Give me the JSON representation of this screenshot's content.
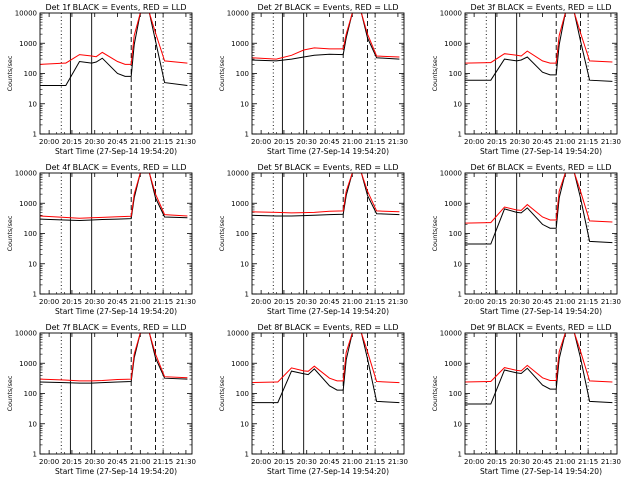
{
  "colors": {
    "events": "#000000",
    "lld": "#ff0000",
    "axes": "#000000",
    "background": "#ffffff"
  },
  "chart_data": [
    {
      "type": "line",
      "title": "Det 1f BLACK = Events, RED = LLD",
      "xlabel": "Start Time (27-Sep-14 19:54:20)",
      "ylabel": "Counts/sec",
      "x_ticks": [
        "20:00",
        "20:15",
        "20:30",
        "20:45",
        "21:00",
        "21:15",
        "21:30"
      ],
      "y_ticks": [
        "1",
        "10",
        "100",
        "1000",
        "10000"
      ],
      "ylim": [
        1,
        10000
      ],
      "yscale": "log",
      "grid": false,
      "series": [
        {
          "key": "events",
          "x": [
            "19:54",
            "20:10",
            "20:11",
            "20:20",
            "20:28",
            "20:31",
            "20:35",
            "20:45",
            "20:50",
            "20:54",
            "20:56",
            "21:00",
            "21:06",
            "21:10",
            "21:16",
            "21:31"
          ],
          "values": [
            40,
            40,
            40,
            250,
            220,
            240,
            320,
            100,
            80,
            80,
            900,
            10000,
            10000,
            1200,
            50,
            40
          ]
        },
        {
          "key": "lld",
          "x": [
            "19:54",
            "20:10",
            "20:11",
            "20:20",
            "20:28",
            "20:31",
            "20:35",
            "20:45",
            "20:50",
            "20:54",
            "20:56",
            "21:00",
            "21:06",
            "21:10",
            "21:16",
            "21:31"
          ],
          "values": [
            200,
            220,
            220,
            420,
            380,
            360,
            500,
            250,
            200,
            200,
            1800,
            10000,
            10000,
            2200,
            260,
            220
          ]
        }
      ]
    },
    {
      "type": "line",
      "title": "Det 2f BLACK = Events, RED = LLD",
      "xlabel": "Start Time (27-Sep-14 19:54:20)",
      "ylabel": "Counts/sec",
      "x_ticks": [
        "20:00",
        "20:15",
        "20:30",
        "20:45",
        "21:00",
        "21:15",
        "21:30"
      ],
      "y_ticks": [
        "1",
        "10",
        "100",
        "1000",
        "10000"
      ],
      "ylim": [
        1,
        10000
      ],
      "yscale": "log",
      "grid": false,
      "series": [
        {
          "key": "events",
          "x": [
            "19:54",
            "20:10",
            "20:20",
            "20:28",
            "20:35",
            "20:45",
            "20:54",
            "20:56",
            "21:00",
            "21:06",
            "21:10",
            "21:16",
            "21:31"
          ],
          "values": [
            280,
            260,
            300,
            350,
            400,
            430,
            420,
            1500,
            10000,
            10000,
            1500,
            330,
            300
          ]
        },
        {
          "key": "lld",
          "x": [
            "19:54",
            "20:10",
            "20:20",
            "20:28",
            "20:35",
            "20:45",
            "20:54",
            "20:56",
            "21:00",
            "21:06",
            "21:10",
            "21:16",
            "21:31"
          ],
          "values": [
            330,
            300,
            400,
            600,
            700,
            650,
            650,
            2000,
            10000,
            10000,
            2000,
            380,
            350
          ]
        }
      ]
    },
    {
      "type": "line",
      "title": "Det 3f BLACK = Events, RED = LLD",
      "xlabel": "Start Time (27-Sep-14 19:54:20)",
      "ylabel": "Counts/sec",
      "x_ticks": [
        "20:00",
        "20:15",
        "20:30",
        "20:45",
        "21:00",
        "21:15",
        "21:30"
      ],
      "y_ticks": [
        "1",
        "10",
        "100",
        "1000",
        "10000"
      ],
      "ylim": [
        1,
        10000
      ],
      "yscale": "log",
      "grid": false,
      "series": [
        {
          "key": "events",
          "x": [
            "19:54",
            "20:10",
            "20:11",
            "20:20",
            "20:28",
            "20:31",
            "20:35",
            "20:45",
            "20:50",
            "20:54",
            "20:56",
            "21:00",
            "21:06",
            "21:10",
            "21:16",
            "21:31"
          ],
          "values": [
            60,
            60,
            60,
            300,
            260,
            280,
            350,
            110,
            90,
            90,
            900,
            10000,
            10000,
            1200,
            60,
            55
          ]
        },
        {
          "key": "lld",
          "x": [
            "19:54",
            "20:10",
            "20:11",
            "20:20",
            "20:28",
            "20:31",
            "20:35",
            "20:45",
            "20:50",
            "20:54",
            "20:56",
            "21:00",
            "21:06",
            "21:10",
            "21:16",
            "21:31"
          ],
          "values": [
            220,
            230,
            230,
            450,
            400,
            380,
            550,
            260,
            220,
            220,
            1800,
            10000,
            10000,
            2200,
            260,
            240
          ]
        }
      ]
    },
    {
      "type": "line",
      "title": "Det 4f BLACK = Events, RED = LLD",
      "xlabel": "Start Time (27-Sep-14 19:54:20)",
      "ylabel": "Counts/sec",
      "x_ticks": [
        "20:00",
        "20:15",
        "20:30",
        "20:45",
        "21:00",
        "21:15",
        "21:30"
      ],
      "y_ticks": [
        "1",
        "10",
        "100",
        "1000",
        "10000"
      ],
      "ylim": [
        1,
        10000
      ],
      "yscale": "log",
      "grid": false,
      "series": [
        {
          "key": "events",
          "x": [
            "19:54",
            "20:10",
            "20:20",
            "20:28",
            "20:35",
            "20:45",
            "20:54",
            "20:56",
            "21:00",
            "21:06",
            "21:10",
            "21:16",
            "21:31"
          ],
          "values": [
            300,
            280,
            270,
            280,
            290,
            300,
            310,
            1500,
            10000,
            10000,
            1500,
            350,
            330
          ]
        },
        {
          "key": "lld",
          "x": [
            "19:54",
            "20:10",
            "20:20",
            "20:28",
            "20:35",
            "20:45",
            "20:54",
            "20:56",
            "21:00",
            "21:06",
            "21:10",
            "21:16",
            "21:31"
          ],
          "values": [
            380,
            340,
            320,
            330,
            340,
            360,
            370,
            2000,
            10000,
            10000,
            2000,
            420,
            380
          ]
        }
      ]
    },
    {
      "type": "line",
      "title": "Det 5f BLACK = Events, RED = LLD",
      "xlabel": "Start Time (27-Sep-14 19:54:20)",
      "ylabel": "Counts/sec",
      "x_ticks": [
        "20:00",
        "20:15",
        "20:30",
        "20:45",
        "21:00",
        "21:15",
        "21:30"
      ],
      "y_ticks": [
        "1",
        "10",
        "100",
        "1000",
        "10000"
      ],
      "ylim": [
        1,
        10000
      ],
      "yscale": "log",
      "grid": false,
      "series": [
        {
          "key": "events",
          "x": [
            "19:54",
            "20:10",
            "20:20",
            "20:28",
            "20:35",
            "20:45",
            "20:54",
            "20:56",
            "21:00",
            "21:06",
            "21:10",
            "21:16",
            "21:31"
          ],
          "values": [
            400,
            380,
            380,
            390,
            400,
            420,
            430,
            1800,
            10000,
            10000,
            1800,
            450,
            420
          ]
        },
        {
          "key": "lld",
          "x": [
            "19:54",
            "20:10",
            "20:20",
            "20:28",
            "20:35",
            "20:45",
            "20:54",
            "20:56",
            "21:00",
            "21:06",
            "21:10",
            "21:16",
            "21:31"
          ],
          "values": [
            520,
            500,
            480,
            490,
            500,
            540,
            560,
            2500,
            10000,
            10000,
            2500,
            560,
            520
          ]
        }
      ]
    },
    {
      "type": "line",
      "title": "Det 6f BLACK = Events, RED = LLD",
      "xlabel": "Start Time (27-Sep-14 19:54:20)",
      "ylabel": "Counts/sec",
      "x_ticks": [
        "20:00",
        "20:15",
        "20:30",
        "20:45",
        "21:00",
        "21:15",
        "21:30"
      ],
      "y_ticks": [
        "1",
        "10",
        "100",
        "1000",
        "10000"
      ],
      "ylim": [
        1,
        10000
      ],
      "yscale": "log",
      "grid": false,
      "series": [
        {
          "key": "events",
          "x": [
            "19:54",
            "20:10",
            "20:11",
            "20:20",
            "20:28",
            "20:31",
            "20:35",
            "20:45",
            "20:50",
            "20:54",
            "20:56",
            "21:00",
            "21:06",
            "21:10",
            "21:16",
            "21:31"
          ],
          "values": [
            45,
            45,
            45,
            650,
            500,
            480,
            700,
            200,
            150,
            150,
            1500,
            10000,
            10000,
            1500,
            55,
            50
          ]
        },
        {
          "key": "lld",
          "x": [
            "19:54",
            "20:10",
            "20:11",
            "20:20",
            "20:28",
            "20:31",
            "20:35",
            "20:45",
            "20:50",
            "20:54",
            "20:56",
            "21:00",
            "21:06",
            "21:10",
            "21:16",
            "21:31"
          ],
          "values": [
            220,
            230,
            230,
            750,
            600,
            580,
            900,
            350,
            280,
            280,
            2500,
            10000,
            10000,
            2500,
            260,
            240
          ]
        }
      ]
    },
    {
      "type": "line",
      "title": "Det 7f BLACK = Events, RED = LLD",
      "xlabel": "Start Time (27-Sep-14 19:54:20)",
      "ylabel": "Counts/sec",
      "x_ticks": [
        "20:00",
        "20:15",
        "20:30",
        "20:45",
        "21:00",
        "21:15",
        "21:30"
      ],
      "y_ticks": [
        "1",
        "10",
        "100",
        "1000",
        "10000"
      ],
      "ylim": [
        1,
        10000
      ],
      "yscale": "log",
      "grid": false,
      "series": [
        {
          "key": "events",
          "x": [
            "19:54",
            "20:10",
            "20:20",
            "20:28",
            "20:35",
            "20:45",
            "20:54",
            "20:56",
            "21:00",
            "21:06",
            "21:10",
            "21:16",
            "21:31"
          ],
          "values": [
            240,
            230,
            220,
            220,
            230,
            240,
            250,
            1500,
            10000,
            10000,
            1500,
            320,
            300
          ]
        },
        {
          "key": "lld",
          "x": [
            "19:54",
            "20:10",
            "20:20",
            "20:28",
            "20:35",
            "20:45",
            "20:54",
            "20:56",
            "21:00",
            "21:06",
            "21:10",
            "21:16",
            "21:31"
          ],
          "values": [
            300,
            280,
            260,
            260,
            270,
            290,
            300,
            2000,
            10000,
            10000,
            2000,
            360,
            330
          ]
        }
      ]
    },
    {
      "type": "line",
      "title": "Det 8f BLACK = Events, RED = LLD",
      "xlabel": "Start Time (27-Sep-14 19:54:20)",
      "ylabel": "Counts/sec",
      "x_ticks": [
        "20:00",
        "20:15",
        "20:30",
        "20:45",
        "21:00",
        "21:15",
        "21:30"
      ],
      "y_ticks": [
        "1",
        "10",
        "100",
        "1000",
        "10000"
      ],
      "ylim": [
        1,
        10000
      ],
      "yscale": "log",
      "grid": false,
      "series": [
        {
          "key": "events",
          "x": [
            "19:54",
            "20:10",
            "20:11",
            "20:20",
            "20:28",
            "20:31",
            "20:35",
            "20:45",
            "20:50",
            "20:54",
            "20:56",
            "21:00",
            "21:06",
            "21:10",
            "21:16",
            "21:31"
          ],
          "values": [
            50,
            50,
            50,
            550,
            450,
            420,
            650,
            180,
            130,
            130,
            1300,
            10000,
            10000,
            1400,
            55,
            50
          ]
        },
        {
          "key": "lld",
          "x": [
            "19:54",
            "20:10",
            "20:11",
            "20:20",
            "20:28",
            "20:31",
            "20:35",
            "20:45",
            "20:50",
            "20:54",
            "20:56",
            "21:00",
            "21:06",
            "21:10",
            "21:16",
            "21:31"
          ],
          "values": [
            230,
            240,
            240,
            700,
            560,
            540,
            800,
            320,
            260,
            260,
            2300,
            10000,
            10000,
            2400,
            250,
            230
          ]
        }
      ]
    },
    {
      "type": "line",
      "title": "Det 9f BLACK = Events, RED = LLD",
      "xlabel": "Start Time (27-Sep-14 19:54:20)",
      "ylabel": "Counts/sec",
      "x_ticks": [
        "20:00",
        "20:15",
        "20:30",
        "20:45",
        "21:00",
        "21:15",
        "21:30"
      ],
      "y_ticks": [
        "1",
        "10",
        "100",
        "1000",
        "10000"
      ],
      "ylim": [
        1,
        10000
      ],
      "yscale": "log",
      "grid": false,
      "series": [
        {
          "key": "events",
          "x": [
            "19:54",
            "20:10",
            "20:11",
            "20:20",
            "20:28",
            "20:31",
            "20:35",
            "20:45",
            "20:50",
            "20:54",
            "20:56",
            "21:00",
            "21:06",
            "21:10",
            "21:16",
            "21:31"
          ],
          "values": [
            45,
            45,
            45,
            600,
            480,
            460,
            680,
            190,
            140,
            140,
            1400,
            10000,
            10000,
            1500,
            55,
            50
          ]
        },
        {
          "key": "lld",
          "x": [
            "19:54",
            "20:10",
            "20:11",
            "20:20",
            "20:28",
            "20:31",
            "20:35",
            "20:45",
            "20:50",
            "20:54",
            "20:56",
            "21:00",
            "21:06",
            "21:10",
            "21:16",
            "21:31"
          ],
          "values": [
            240,
            250,
            250,
            720,
            580,
            560,
            850,
            330,
            270,
            270,
            2400,
            10000,
            10000,
            2500,
            260,
            240
          ]
        }
      ]
    }
  ]
}
